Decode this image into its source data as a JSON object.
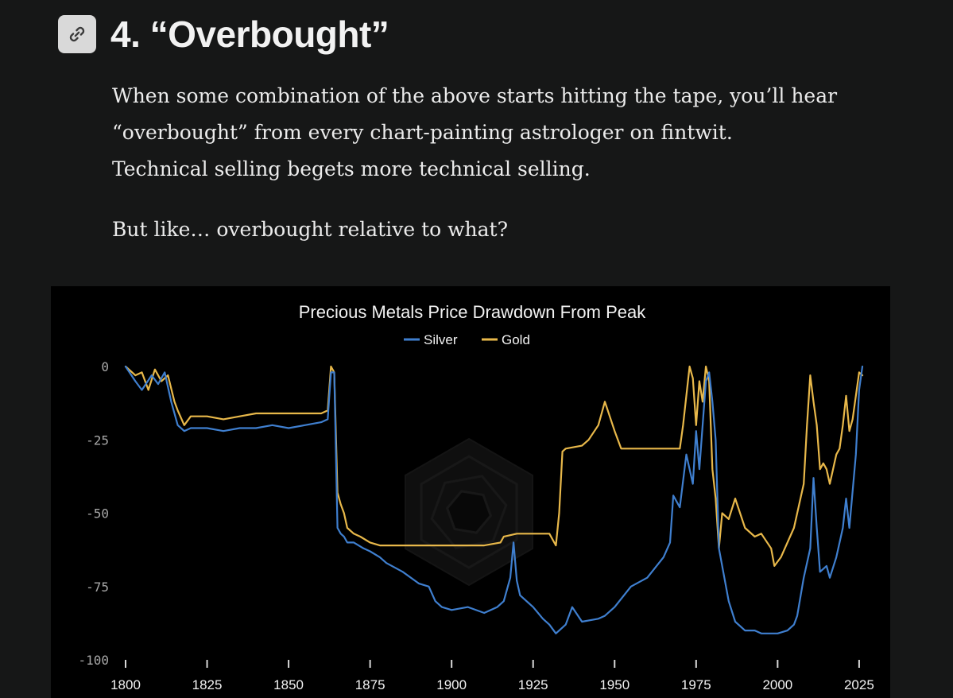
{
  "section": {
    "title": "4. “Overbought”",
    "link_icon": "link-icon"
  },
  "article": {
    "paragraphs": [
      "When some combination of the above starts hitting the tape, you’ll hear",
      "“overbought” from every chart-painting astrologer on fintwit.",
      "Technical selling begets more technical selling."
    ],
    "question": "But like… overbought relative to what?"
  },
  "colors": {
    "silver": "#3f7fcf",
    "gold": "#e8b84a",
    "background": "#161717",
    "chart_bg": "#000000"
  },
  "chart_data": {
    "type": "line",
    "title": "Precious Metals Price Drawdown From Peak",
    "xlabel": "",
    "ylabel": "",
    "xlim": [
      1800,
      2026
    ],
    "ylim": [
      -100,
      0
    ],
    "x_ticks": [
      1800,
      1825,
      1850,
      1875,
      1900,
      1925,
      1950,
      1975,
      2000,
      2025
    ],
    "y_ticks": [
      0,
      -25,
      -50,
      -75,
      -100
    ],
    "y_tick_labels": [
      "0",
      "-25",
      "-50",
      "-75",
      "-100"
    ],
    "legend": [
      "Silver",
      "Gold"
    ],
    "legend_position": "top-center",
    "series": [
      {
        "name": "Silver",
        "color": "#3f7fcf",
        "x": [
          1800,
          1803,
          1805,
          1808,
          1810,
          1812,
          1814,
          1815,
          1816,
          1818,
          1820,
          1825,
          1830,
          1835,
          1840,
          1845,
          1850,
          1855,
          1860,
          1862,
          1863,
          1864,
          1865,
          1866,
          1867,
          1868,
          1870,
          1873,
          1875,
          1878,
          1880,
          1885,
          1890,
          1893,
          1895,
          1897,
          1900,
          1905,
          1910,
          1914,
          1916,
          1918,
          1919,
          1920,
          1921,
          1925,
          1928,
          1930,
          1932,
          1935,
          1937,
          1940,
          1945,
          1947,
          1950,
          1955,
          1960,
          1965,
          1967,
          1968,
          1970,
          1972,
          1974,
          1975,
          1976,
          1978,
          1979,
          1980,
          1981,
          1982,
          1985,
          1987,
          1990,
          1993,
          1995,
          2000,
          2003,
          2005,
          2006,
          2008,
          2010,
          2011,
          2012,
          2013,
          2015,
          2016,
          2018,
          2020,
          2021,
          2022,
          2024,
          2025,
          2026
        ],
        "values": [
          0,
          -5,
          -8,
          -3,
          -6,
          -2,
          -12,
          -16,
          -20,
          -22,
          -21,
          -21,
          -22,
          -21,
          -21,
          -20,
          -21,
          -20,
          -19,
          -18,
          -2,
          -2,
          -55,
          -57,
          -58,
          -60,
          -60,
          -62,
          -63,
          -65,
          -67,
          -70,
          -74,
          -75,
          -80,
          -82,
          -83,
          -82,
          -84,
          -82,
          -80,
          -72,
          -60,
          -73,
          -78,
          -82,
          -86,
          -88,
          -91,
          -88,
          -82,
          -87,
          -86,
          -85,
          -82,
          -75,
          -72,
          -65,
          -60,
          -44,
          -48,
          -30,
          -40,
          -22,
          -35,
          -5,
          -2,
          -12,
          -25,
          -62,
          -80,
          -87,
          -90,
          -90,
          -91,
          -91,
          -90,
          -88,
          -85,
          -72,
          -62,
          -38,
          -55,
          -70,
          -68,
          -72,
          -65,
          -55,
          -45,
          -55,
          -30,
          -8,
          0
        ]
      },
      {
        "name": "Gold",
        "color": "#e8b84a",
        "x": [
          1800,
          1803,
          1805,
          1807,
          1809,
          1811,
          1813,
          1815,
          1816,
          1818,
          1820,
          1825,
          1830,
          1835,
          1840,
          1845,
          1850,
          1855,
          1860,
          1862,
          1863,
          1864,
          1865,
          1866,
          1867,
          1868,
          1870,
          1872,
          1875,
          1878,
          1880,
          1885,
          1890,
          1900,
          1910,
          1915,
          1916,
          1920,
          1925,
          1930,
          1932,
          1933,
          1934,
          1935,
          1940,
          1942,
          1945,
          1947,
          1950,
          1952,
          1955,
          1960,
          1965,
          1970,
          1971,
          1972,
          1973,
          1974,
          1975,
          1976,
          1977,
          1978,
          1979,
          1980,
          1981,
          1982,
          1983,
          1985,
          1987,
          1990,
          1993,
          1995,
          1998,
          1999,
          2001,
          2003,
          2005,
          2006,
          2008,
          2009,
          2010,
          2011,
          2012,
          2013,
          2014,
          2015,
          2016,
          2018,
          2019,
          2020,
          2021,
          2022,
          2023,
          2024,
          2025,
          2026
        ],
        "values": [
          0,
          -3,
          -2,
          -8,
          -1,
          -5,
          -3,
          -12,
          -15,
          -20,
          -17,
          -17,
          -18,
          -17,
          -16,
          -16,
          -16,
          -16,
          -16,
          -15,
          0,
          -2,
          -43,
          -47,
          -50,
          -55,
          -57,
          -58,
          -60,
          -61,
          -61,
          -61,
          -61,
          -61,
          -61,
          -60,
          -58,
          -57,
          -57,
          -57,
          -61,
          -50,
          -29,
          -28,
          -27,
          -25,
          -20,
          -12,
          -22,
          -28,
          -28,
          -28,
          -28,
          -28,
          -20,
          -10,
          0,
          -4,
          -20,
          -5,
          -12,
          0,
          -5,
          -35,
          -45,
          -62,
          -50,
          -52,
          -45,
          -55,
          -58,
          -57,
          -62,
          -68,
          -65,
          -60,
          -55,
          -50,
          -40,
          -20,
          -3,
          -12,
          -20,
          -35,
          -33,
          -35,
          -40,
          -30,
          -28,
          -20,
          -10,
          -22,
          -18,
          -10,
          -2,
          -3
        ]
      }
    ]
  }
}
